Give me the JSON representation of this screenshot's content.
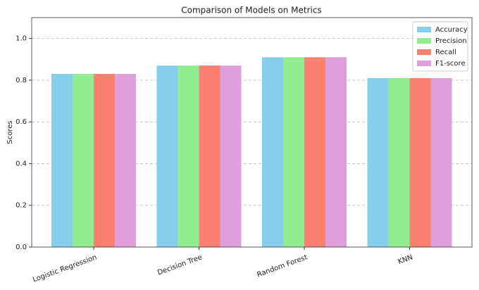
{
  "chart_data": {
    "type": "grouped-bar",
    "title": "Comparison of Models on Metrics",
    "y_label": "Scores",
    "categories": [
      "Logistic Regression",
      "Decision Tree",
      "Random Forest",
      "KNN"
    ],
    "series": [
      {
        "name": "Accuracy",
        "color": "#87ceeb",
        "values": [
          0.83,
          0.87,
          0.91,
          0.81
        ]
      },
      {
        "name": "Precision",
        "color": "#90ee90",
        "values": [
          0.83,
          0.87,
          0.91,
          0.81
        ]
      },
      {
        "name": "Recall",
        "color": "#fa8072",
        "values": [
          0.83,
          0.87,
          0.91,
          0.81
        ]
      },
      {
        "name": "F1-score",
        "color": "#dda0dd",
        "values": [
          0.83,
          0.87,
          0.91,
          0.81
        ]
      }
    ],
    "ylim": [
      0,
      1.1
    ],
    "yticks": [
      {
        "value": 0,
        "label": "0.0"
      },
      0.2,
      0.4,
      0.6,
      0.8,
      {
        "value": 1,
        "label": "1.0"
      }
    ],
    "grid": true,
    "legend": "upper-right"
  }
}
